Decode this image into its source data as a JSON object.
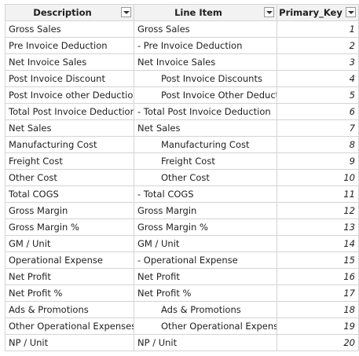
{
  "table": {
    "columns": [
      {
        "label": "Description"
      },
      {
        "label": "Line Item"
      },
      {
        "label": "Primary_Key"
      }
    ],
    "rows": [
      {
        "description": "Gross Sales",
        "line_item": "Gross Sales",
        "indent": false,
        "key": "1"
      },
      {
        "description": "Pre Invoice Deduction",
        "line_item": "- Pre Invoice Deduction",
        "indent": false,
        "key": "2"
      },
      {
        "description": "Net Invoice Sales",
        "line_item": "Net Invoice Sales",
        "indent": false,
        "key": "3"
      },
      {
        "description": "Post Invoice Discount",
        "line_item": "Post Invoice Discounts",
        "indent": true,
        "key": "4"
      },
      {
        "description": "Post Invoice other Deduction",
        "line_item": "Post Invoice Other Deduction",
        "indent": true,
        "key": "5"
      },
      {
        "description": "Total Post Invoice Deduction",
        "line_item": "- Total Post Invoice Deduction",
        "indent": false,
        "key": "6"
      },
      {
        "description": "Net Sales",
        "line_item": "Net Sales",
        "indent": false,
        "key": "7"
      },
      {
        "description": "Manufacturing Cost",
        "line_item": "Manufacturing Cost",
        "indent": true,
        "key": "8"
      },
      {
        "description": "Freight Cost",
        "line_item": "Freight Cost",
        "indent": true,
        "key": "9"
      },
      {
        "description": "Other Cost",
        "line_item": "Other Cost",
        "indent": true,
        "key": "10"
      },
      {
        "description": "Total COGS",
        "line_item": "- Total COGS",
        "indent": false,
        "key": "11"
      },
      {
        "description": "Gross Margin",
        "line_item": "Gross Margin",
        "indent": false,
        "key": "12"
      },
      {
        "description": "Gross Margin %",
        "line_item": "Gross Margin %",
        "indent": false,
        "key": "13"
      },
      {
        "description": "GM / Unit",
        "line_item": "GM / Unit",
        "indent": false,
        "key": "14"
      },
      {
        "description": "Operational Expense",
        "line_item": "- Operational Expense",
        "indent": false,
        "key": "15"
      },
      {
        "description": "Net Profit",
        "line_item": "Net Profit",
        "indent": false,
        "key": "16"
      },
      {
        "description": "Net Profit %",
        "line_item": "Net Profit %",
        "indent": false,
        "key": "17"
      },
      {
        "description": "Ads & Promotions",
        "line_item": "Ads & Promotions",
        "indent": true,
        "key": "18"
      },
      {
        "description": "Other Operational Expenses",
        "line_item": "Other Operational Expense",
        "indent": true,
        "key": "19"
      },
      {
        "description": "NP / Unit",
        "line_item": "NP / Unit",
        "indent": false,
        "key": "20"
      }
    ]
  }
}
